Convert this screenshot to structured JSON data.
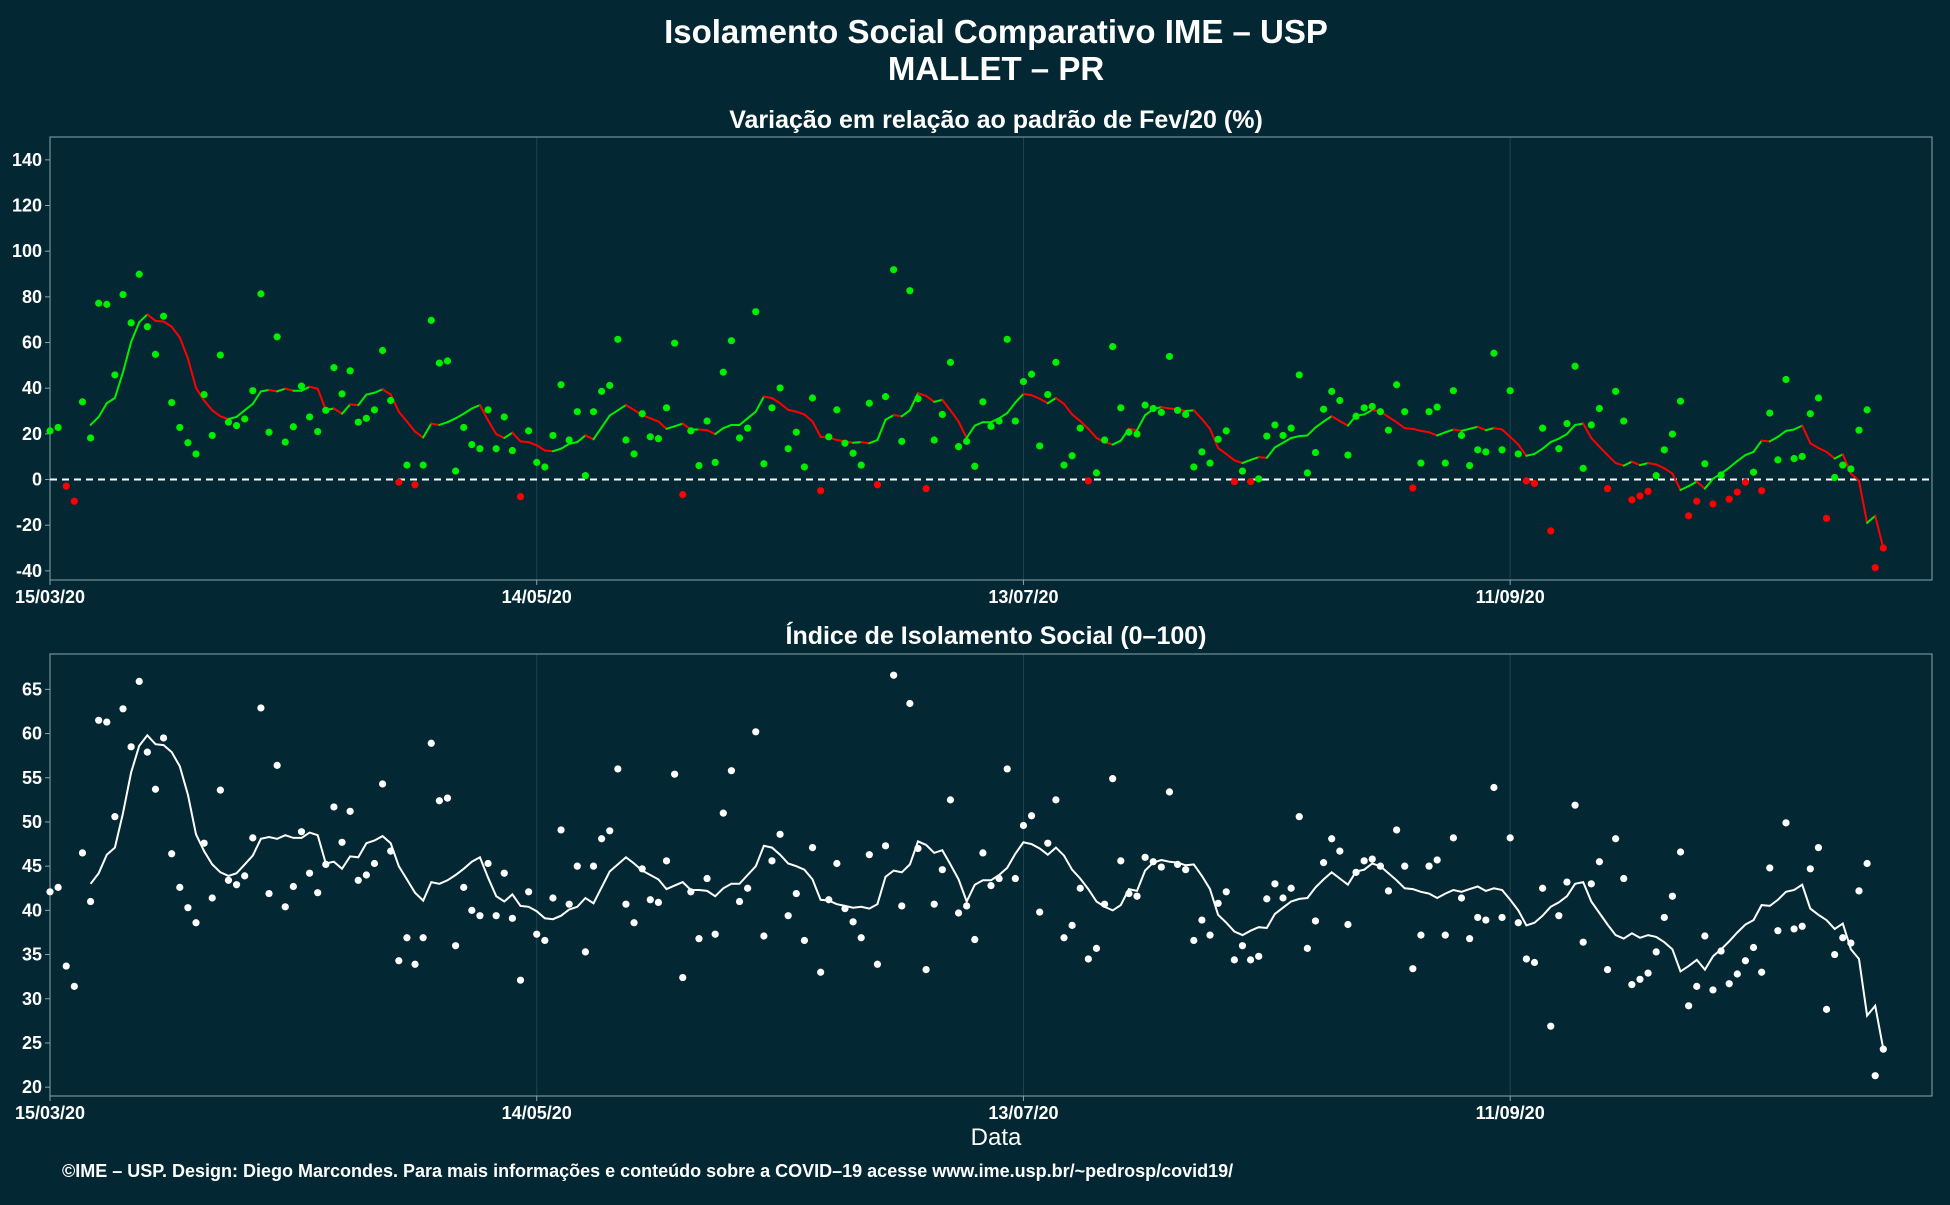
{
  "title": "Isolamento Social Comparativo IME – USP",
  "subtitle": "MALLET – PR",
  "caption": "©IME – USP. Design: Diego Marcondes. Para mais informações e conteúdo sobre a COVID–19 acesse www.ime.usp.br/~pedrosp/covid19/",
  "colors": {
    "background": "#032833",
    "positive": "#00ee00",
    "negative": "#ff0000",
    "index": "#ffffff",
    "grid": "#1d4450",
    "axis": "#8aa5ad"
  },
  "chart_data": [
    {
      "type": "scatter",
      "title": "Variação em relação ao padrão de Fev/20 (%)",
      "xlabel": "",
      "ylabel": "",
      "x_start": "15/03/20",
      "x_range_days": [
        0,
        232
      ],
      "xticks": [
        {
          "day": 0,
          "label": "15/03/20"
        },
        {
          "day": 60,
          "label": "14/05/20"
        },
        {
          "day": 120,
          "label": "13/07/20"
        },
        {
          "day": 180,
          "label": "11/09/20"
        }
      ],
      "ylim": [
        -44,
        150
      ],
      "yticks": [
        -40,
        -20,
        0,
        20,
        40,
        60,
        80,
        100,
        120,
        140
      ],
      "reference_line": 0,
      "grid": true,
      "point_series": {
        "name": "",
        "values": []
      },
      "moving_average": {
        "name": "",
        "values": []
      }
    },
    {
      "type": "scatter",
      "title": "Índice de Isolamento Social (0–100)",
      "xlabel": "Data",
      "ylabel": "",
      "x_start": "15/03/20",
      "x_range_days": [
        0,
        232
      ],
      "xticks": [
        {
          "day": 0,
          "label": "15/03/20"
        },
        {
          "day": 60,
          "label": "14/05/20"
        },
        {
          "day": 120,
          "label": "13/07/20"
        },
        {
          "day": 180,
          "label": "11/09/20"
        }
      ],
      "ylim": [
        19,
        69
      ],
      "yticks": [
        20,
        25,
        30,
        35,
        40,
        45,
        50,
        55,
        60,
        65
      ],
      "grid": true,
      "point_series": {
        "name": "",
        "values": [
          42.1,
          42.6,
          33.7,
          31.4,
          46.5,
          41.0,
          61.5,
          61.3,
          50.6,
          62.8,
          58.5,
          65.9,
          57.9,
          53.7,
          59.5,
          46.4,
          42.6,
          40.3,
          38.6,
          47.6,
          41.4,
          53.6,
          43.4,
          42.9,
          43.9,
          48.2,
          62.9,
          41.9,
          56.4,
          40.4,
          42.7,
          48.9,
          44.2,
          42.0,
          45.2,
          51.7,
          47.7,
          51.2,
          43.4,
          44.0,
          45.3,
          54.3,
          46.7,
          34.3,
          36.9,
          33.9,
          36.9,
          58.9,
          52.4,
          52.7,
          36.0,
          42.6,
          40.0,
          39.4,
          45.3,
          39.4,
          44.2,
          39.1,
          32.1,
          42.1,
          37.3,
          36.6,
          41.4,
          49.1,
          40.7,
          45.0,
          35.3,
          45.0,
          48.1,
          49.0,
          56.0,
          40.7,
          38.6,
          44.7,
          41.2,
          40.9,
          45.6,
          55.4,
          32.4,
          42.1,
          36.8,
          43.6,
          37.3,
          51.0,
          55.8,
          41.0,
          42.5,
          60.2,
          37.1,
          45.6,
          48.6,
          39.4,
          41.9,
          36.6,
          47.1,
          33.0,
          41.2,
          45.3,
          40.2,
          38.7,
          36.9,
          46.3,
          33.9,
          47.3,
          66.6,
          40.5,
          63.4,
          47.0,
          33.3,
          40.7,
          44.6,
          52.5,
          39.7,
          40.5,
          36.7,
          46.5,
          42.8,
          43.6,
          56.0,
          43.6,
          49.6,
          50.7,
          39.8,
          47.6,
          52.5,
          36.9,
          38.3,
          42.5,
          34.5,
          35.7,
          40.7,
          54.9,
          45.6,
          41.9,
          41.6,
          46.0,
          45.5,
          44.9,
          53.4,
          45.2,
          44.6,
          36.6,
          38.9,
          37.2,
          40.8,
          42.1,
          34.4,
          36.0,
          34.4,
          34.8,
          41.3,
          43.0,
          41.4,
          42.5,
          50.6,
          35.7,
          38.8,
          45.4,
          48.1,
          46.7,
          38.4,
          44.3,
          45.6,
          45.8,
          45.0,
          42.2,
          49.1,
          45.0,
          33.4,
          37.2,
          45.0,
          45.7,
          37.2,
          48.2,
          41.4,
          36.8,
          39.2,
          38.9,
          53.9,
          39.2,
          48.2,
          38.6,
          34.5,
          34.1,
          42.5,
          26.9,
          39.4,
          43.2,
          51.9,
          36.4,
          43.0,
          45.5,
          33.3,
          48.1,
          43.6,
          31.6,
          32.2,
          32.9,
          35.3,
          39.2,
          41.6,
          46.6,
          29.2,
          31.4,
          37.1,
          31.0,
          35.4,
          31.7,
          32.8,
          34.3,
          35.8,
          33.0,
          44.8,
          37.7,
          49.9,
          37.9,
          38.2,
          44.7,
          47.1,
          28.8,
          35.0,
          36.9,
          36.3,
          42.2,
          45.3,
          21.3,
          24.3
        ]
      },
      "moving_average": {
        "name": "",
        "values": [
          43.0,
          44.2,
          46.3,
          47.1,
          51.0,
          55.6,
          58.6,
          59.8,
          58.8,
          58.7,
          57.9,
          56.3,
          53.1,
          48.6,
          46.7,
          45.2,
          44.3,
          43.9,
          44.2,
          45.2,
          46.2,
          48.1,
          48.3,
          48.1,
          48.5,
          48.2,
          48.2,
          48.8,
          48.5,
          45.3,
          45.5,
          44.7,
          46.1,
          46.0,
          47.6,
          47.9,
          48.4,
          47.6,
          45.0,
          43.5,
          42.0,
          41.1,
          43.2,
          43.0,
          43.4,
          44.0,
          44.7,
          45.5,
          46.0,
          43.7,
          41.6,
          41.0,
          41.8,
          40.5,
          40.4,
          39.9,
          39.1,
          39.0,
          39.4,
          40.1,
          40.4,
          41.4,
          40.8,
          42.6,
          44.4,
          45.2,
          46.0,
          45.3,
          44.5,
          44.0,
          43.5,
          42.4,
          42.8,
          43.2,
          42.3,
          42.3,
          42.2,
          41.6,
          42.5,
          43.0,
          43.0,
          44.0,
          45.0,
          47.3,
          47.1,
          46.3,
          45.3,
          45.0,
          44.6,
          43.5,
          41.2,
          41.1,
          40.7,
          40.5,
          40.3,
          40.4,
          40.2,
          40.7,
          43.8,
          44.5,
          44.3,
          45.2,
          47.8,
          47.4,
          46.5,
          46.8,
          45.2,
          43.5,
          41.0,
          42.9,
          43.4,
          43.4,
          44.0,
          44.8,
          46.4,
          47.7,
          47.5,
          47.0,
          46.3,
          47.1,
          46.2,
          44.6,
          43.6,
          42.4,
          41.0,
          40.4,
          40.0,
          40.6,
          42.4,
          42.2,
          44.5,
          45.4,
          45.7,
          45.5,
          45.4,
          45.1,
          45.2,
          43.9,
          42.4,
          39.5,
          38.6,
          37.6,
          37.2,
          37.7,
          38.1,
          38.0,
          39.6,
          40.3,
          41.0,
          41.3,
          41.4,
          42.6,
          43.5,
          44.3,
          43.6,
          42.9,
          44.4,
          44.6,
          45.3,
          45.0,
          44.2,
          43.4,
          42.5,
          42.4,
          42.1,
          41.9,
          41.4,
          41.9,
          42.3,
          42.1,
          42.4,
          42.7,
          42.2,
          42.5,
          42.3,
          41.2,
          40.0,
          38.3,
          38.6,
          39.4,
          40.4,
          40.9,
          41.6,
          43.0,
          43.2,
          41.0,
          39.7,
          38.4,
          37.2,
          36.8,
          37.4,
          36.9,
          37.2,
          37.0,
          36.4,
          35.6,
          33.1,
          33.7,
          34.4,
          33.3,
          34.8,
          35.6,
          36.5,
          37.5,
          38.4,
          38.9,
          40.6,
          40.5,
          41.2,
          42.1,
          42.3,
          42.9,
          40.2,
          39.5,
          38.9,
          37.9,
          38.5,
          35.6,
          34.5,
          28.1,
          29.2,
          24.3
        ]
      }
    }
  ]
}
